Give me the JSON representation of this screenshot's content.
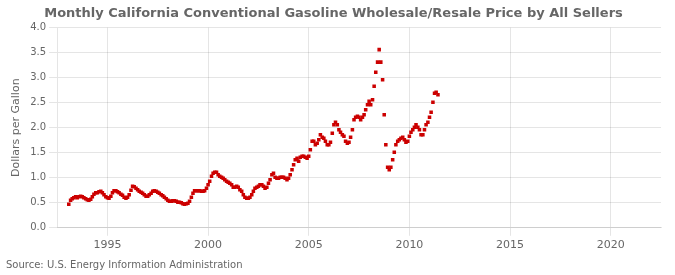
{
  "chart_data": {
    "type": "scatter",
    "title": "Monthly California Conventional Gasoline Wholesale/Resale Price by All Sellers",
    "ylabel": "Dollars per Gallon",
    "annotation": "Source: U.S. Energy Information Administration",
    "color": "#cc0000",
    "marker": "square",
    "line_style": "none",
    "grid": true,
    "xlim": [
      1992.5,
      2022.5
    ],
    "ylim": [
      0.0,
      4.0
    ],
    "xticks": [
      1995,
      2000,
      2005,
      2010,
      2015,
      2020
    ],
    "yticks": [
      {
        "value": 0.0,
        "label": "0.0"
      },
      0.5,
      {
        "value": 1.0,
        "label": "1.0"
      },
      1.5,
      {
        "value": 2.0,
        "label": "2.0"
      },
      2.5,
      {
        "value": 3.0,
        "label": "3.0"
      },
      3.5,
      {
        "value": 4.0,
        "label": "4.0"
      }
    ],
    "x": [
      1993.08,
      1993.17,
      1993.25,
      1993.33,
      1993.42,
      1993.5,
      1993.58,
      1993.67,
      1993.75,
      1993.83,
      1993.92,
      1994.0,
      1994.08,
      1994.17,
      1994.25,
      1994.33,
      1994.42,
      1994.5,
      1994.58,
      1994.67,
      1994.75,
      1994.83,
      1994.92,
      1995.0,
      1995.08,
      1995.17,
      1995.25,
      1995.33,
      1995.42,
      1995.5,
      1995.58,
      1995.67,
      1995.75,
      1995.83,
      1995.92,
      1996.0,
      1996.08,
      1996.17,
      1996.25,
      1996.33,
      1996.42,
      1996.5,
      1996.58,
      1996.67,
      1996.75,
      1996.83,
      1996.92,
      1997.0,
      1997.08,
      1997.17,
      1997.25,
      1997.33,
      1997.42,
      1997.5,
      1997.58,
      1997.67,
      1997.75,
      1997.83,
      1997.92,
      1998.0,
      1998.08,
      1998.17,
      1998.25,
      1998.33,
      1998.42,
      1998.5,
      1998.58,
      1998.67,
      1998.75,
      1998.83,
      1998.92,
      1999.0,
      1999.08,
      1999.17,
      1999.25,
      1999.33,
      1999.42,
      1999.5,
      1999.58,
      1999.67,
      1999.75,
      1999.83,
      1999.92,
      2000.0,
      2000.08,
      2000.17,
      2000.25,
      2000.33,
      2000.42,
      2000.5,
      2000.58,
      2000.67,
      2000.75,
      2000.83,
      2000.92,
      2001.0,
      2001.08,
      2001.17,
      2001.25,
      2001.33,
      2001.42,
      2001.5,
      2001.58,
      2001.67,
      2001.75,
      2001.83,
      2001.92,
      2002.0,
      2002.08,
      2002.17,
      2002.25,
      2002.33,
      2002.42,
      2002.5,
      2002.58,
      2002.67,
      2002.75,
      2002.83,
      2002.92,
      2003.0,
      2003.08,
      2003.17,
      2003.25,
      2003.33,
      2003.42,
      2003.5,
      2003.58,
      2003.67,
      2003.75,
      2003.83,
      2003.92,
      2004.0,
      2004.08,
      2004.17,
      2004.25,
      2004.33,
      2004.42,
      2004.5,
      2004.58,
      2004.67,
      2004.75,
      2004.83,
      2004.92,
      2005.0,
      2005.08,
      2005.17,
      2005.25,
      2005.33,
      2005.42,
      2005.5,
      2005.58,
      2005.67,
      2005.75,
      2005.83,
      2005.92,
      2006.0,
      2006.08,
      2006.17,
      2006.25,
      2006.33,
      2006.42,
      2006.5,
      2006.58,
      2006.67,
      2006.75,
      2006.83,
      2006.92,
      2007.0,
      2007.08,
      2007.17,
      2007.25,
      2007.33,
      2007.42,
      2007.5,
      2007.58,
      2007.67,
      2007.75,
      2007.83,
      2007.92,
      2008.0,
      2008.08,
      2008.17,
      2008.25,
      2008.33,
      2008.42,
      2008.5,
      2008.58,
      2008.67,
      2008.75,
      2008.83,
      2008.92,
      2009.0,
      2009.08,
      2009.17,
      2009.25,
      2009.33,
      2009.42,
      2009.5,
      2009.58,
      2009.67,
      2009.75,
      2009.83,
      2009.92,
      2010.0,
      2010.08,
      2010.17,
      2010.25,
      2010.33,
      2010.42,
      2010.5,
      2010.58,
      2010.67,
      2010.75,
      2010.83,
      2010.92,
      2011.0,
      2011.08,
      2011.17,
      2011.25,
      2011.33,
      2011.42
    ],
    "values": [
      0.47,
      0.55,
      0.58,
      0.6,
      0.62,
      0.6,
      0.62,
      0.63,
      0.62,
      0.6,
      0.58,
      0.56,
      0.55,
      0.57,
      0.62,
      0.67,
      0.7,
      0.7,
      0.72,
      0.73,
      0.7,
      0.66,
      0.62,
      0.6,
      0.59,
      0.63,
      0.7,
      0.74,
      0.74,
      0.72,
      0.7,
      0.67,
      0.65,
      0.61,
      0.59,
      0.61,
      0.66,
      0.75,
      0.83,
      0.82,
      0.79,
      0.76,
      0.73,
      0.71,
      0.69,
      0.66,
      0.63,
      0.63,
      0.66,
      0.69,
      0.73,
      0.74,
      0.73,
      0.71,
      0.69,
      0.66,
      0.64,
      0.61,
      0.58,
      0.55,
      0.53,
      0.53,
      0.54,
      0.54,
      0.53,
      0.51,
      0.51,
      0.5,
      0.48,
      0.47,
      0.48,
      0.49,
      0.53,
      0.61,
      0.69,
      0.74,
      0.74,
      0.74,
      0.74,
      0.73,
      0.73,
      0.74,
      0.79,
      0.86,
      0.93,
      1.03,
      1.09,
      1.11,
      1.11,
      1.06,
      1.03,
      1.01,
      0.99,
      0.96,
      0.93,
      0.91,
      0.89,
      0.86,
      0.81,
      0.81,
      0.83,
      0.81,
      0.76,
      0.73,
      0.66,
      0.61,
      0.59,
      0.59,
      0.61,
      0.66,
      0.73,
      0.79,
      0.81,
      0.83,
      0.86,
      0.86,
      0.83,
      0.79,
      0.81,
      0.89,
      0.96,
      1.06,
      1.09,
      1.01,
      0.99,
      0.99,
      1.01,
      1.01,
      1.01,
      0.99,
      0.96,
      0.99,
      1.06,
      1.16,
      1.26,
      1.36,
      1.39,
      1.33,
      1.41,
      1.43,
      1.43,
      1.41,
      1.39,
      1.43,
      1.56,
      1.73,
      1.73,
      1.66,
      1.69,
      1.76,
      1.86,
      1.81,
      1.79,
      1.73,
      1.66,
      1.66,
      1.71,
      1.89,
      2.06,
      2.11,
      2.06,
      1.96,
      1.91,
      1.86,
      1.83,
      1.73,
      1.69,
      1.71,
      1.81,
      1.96,
      2.16,
      2.21,
      2.23,
      2.21,
      2.16,
      2.21,
      2.26,
      2.36,
      2.46,
      2.53,
      2.46,
      2.56,
      2.83,
      3.11,
      3.31,
      3.56,
      3.31,
      2.96,
      2.26,
      1.66,
      1.21,
      1.16,
      1.21,
      1.36,
      1.51,
      1.66,
      1.73,
      1.76,
      1.79,
      1.81,
      1.76,
      1.71,
      1.73,
      1.83,
      1.91,
      1.96,
      2.01,
      2.06,
      2.01,
      1.96,
      1.86,
      1.86,
      1.96,
      2.06,
      2.11,
      2.21,
      2.31,
      2.51,
      2.69,
      2.71,
      2.66
    ]
  }
}
